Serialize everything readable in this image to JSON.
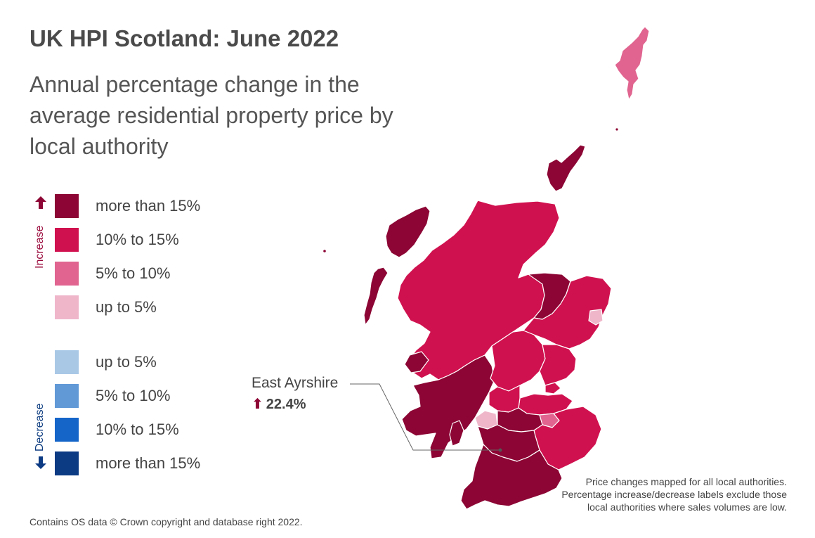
{
  "title": "UK HPI Scotland: June 2022",
  "subtitle": "Annual percentage change in the average residential property price by local authority",
  "legend": {
    "increase_label": "Increase",
    "decrease_label": "Decrease",
    "items": [
      {
        "label": "more than 15%",
        "color": "#8c0534",
        "direction": "increase"
      },
      {
        "label": "10% to 15%",
        "color": "#d0114f",
        "direction": "increase"
      },
      {
        "label": "5% to 10%",
        "color": "#e0648f",
        "direction": "increase"
      },
      {
        "label": "up to 5%",
        "color": "#efb6ca",
        "direction": "increase"
      },
      {
        "label": "up to 5%",
        "color": "#a9c8e6",
        "direction": "decrease"
      },
      {
        "label": "5% to 10%",
        "color": "#6199d7",
        "direction": "decrease"
      },
      {
        "label": "10% to 15%",
        "color": "#1565c9",
        "direction": "decrease"
      },
      {
        "label": "more than 15%",
        "color": "#0c3a83",
        "direction": "decrease"
      }
    ]
  },
  "callout": {
    "name": "East Ayrshire",
    "value": "22.4%",
    "direction": "increase",
    "direction_icon": "up-arrow-icon"
  },
  "map_icons": [
    "up-arrow-icon",
    "down-arrow-icon"
  ],
  "regions": [
    {
      "area": "Shetland Islands",
      "band": "5% to 10%"
    },
    {
      "area": "Orkney Islands",
      "band": "more than 15%"
    },
    {
      "area": "Na h-Eileanan Siar",
      "band": "more than 15%"
    },
    {
      "area": "Highland",
      "band": "10% to 15%"
    },
    {
      "area": "Moray",
      "band": "more than 15%"
    },
    {
      "area": "Aberdeenshire",
      "band": "10% to 15%"
    },
    {
      "area": "Aberdeen City",
      "band": "up to 5%"
    },
    {
      "area": "Argyll and Bute",
      "band": "more than 15%"
    },
    {
      "area": "Perth and Kinross",
      "band": "10% to 15%"
    },
    {
      "area": "Angus",
      "band": "10% to 15%"
    },
    {
      "area": "Dundee City",
      "band": "10% to 15%"
    },
    {
      "area": "Fife",
      "band": "10% to 15%"
    },
    {
      "area": "Stirling",
      "band": "10% to 15%"
    },
    {
      "area": "Glasgow City",
      "band": "up to 5%"
    },
    {
      "area": "City of Edinburgh",
      "band": "5% to 10%"
    },
    {
      "area": "East Ayrshire",
      "band": "more than 15%"
    },
    {
      "area": "South Ayrshire",
      "band": "more than 15%"
    },
    {
      "area": "South Lanarkshire",
      "band": "more than 15%"
    },
    {
      "area": "Dumfries and Galloway",
      "band": "more than 15%"
    },
    {
      "area": "Scottish Borders",
      "band": "10% to 15%"
    }
  ],
  "footnote": "Contains OS data © Crown copyright and database right 2022.",
  "note": "Price changes mapped for all local authorities. Percentage increase/decrease labels exclude those local authorities where sales volumes are low."
}
